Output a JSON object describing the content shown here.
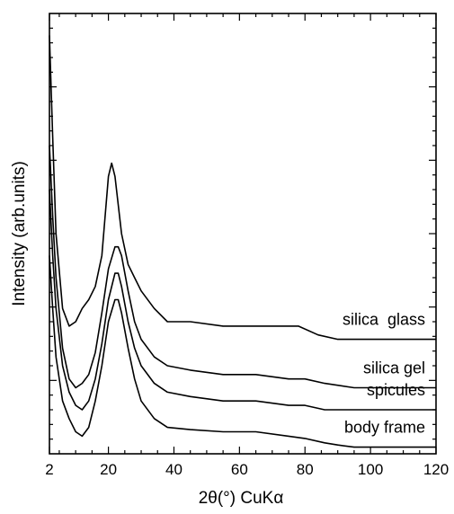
{
  "chart_data": {
    "type": "line",
    "xlabel": "2θ(°) CuKα",
    "ylabel": "Intensity (arb.units)",
    "xlim": [
      2,
      120
    ],
    "ylim": [
      0,
      1
    ],
    "x_ticks": [
      "2",
      "20",
      "40",
      "60",
      "80",
      "100",
      "120"
    ],
    "grid": false,
    "series_labels_placement": "right, above each curve",
    "series": [
      {
        "name": "silica  glass",
        "x": [
          2,
          3,
          4,
          6,
          8,
          10,
          12,
          14,
          16,
          18,
          20,
          21,
          22,
          24,
          26,
          28,
          30,
          34,
          38,
          45,
          55,
          65,
          72,
          78,
          84,
          90,
          100,
          110,
          120
        ],
        "y": [
          0.95,
          0.72,
          0.5,
          0.33,
          0.29,
          0.3,
          0.33,
          0.35,
          0.38,
          0.45,
          0.63,
          0.66,
          0.63,
          0.5,
          0.43,
          0.4,
          0.37,
          0.33,
          0.3,
          0.3,
          0.29,
          0.29,
          0.29,
          0.29,
          0.27,
          0.26,
          0.26,
          0.26,
          0.26
        ]
      },
      {
        "name": "silica gel",
        "x": [
          2,
          3,
          4,
          6,
          8,
          10,
          12,
          14,
          16,
          18,
          20,
          22,
          23,
          24,
          26,
          28,
          30,
          34,
          38,
          45,
          55,
          65,
          75,
          80,
          86,
          95,
          105,
          120
        ],
        "y": [
          0.7,
          0.54,
          0.4,
          0.24,
          0.17,
          0.15,
          0.16,
          0.18,
          0.23,
          0.32,
          0.42,
          0.47,
          0.47,
          0.45,
          0.37,
          0.3,
          0.26,
          0.22,
          0.2,
          0.19,
          0.18,
          0.18,
          0.17,
          0.17,
          0.16,
          0.15,
          0.15,
          0.15
        ]
      },
      {
        "name": "spicules",
        "x": [
          2,
          3,
          4,
          6,
          8,
          10,
          12,
          14,
          16,
          18,
          20,
          22,
          23,
          24,
          26,
          28,
          30,
          34,
          38,
          45,
          55,
          65,
          75,
          80,
          86,
          95,
          105,
          120
        ],
        "y": [
          0.6,
          0.45,
          0.33,
          0.2,
          0.14,
          0.11,
          0.1,
          0.12,
          0.17,
          0.25,
          0.35,
          0.41,
          0.41,
          0.38,
          0.3,
          0.24,
          0.2,
          0.16,
          0.14,
          0.13,
          0.12,
          0.12,
          0.11,
          0.11,
          0.1,
          0.1,
          0.1,
          0.1
        ]
      },
      {
        "name": "body frame",
        "x": [
          2,
          3,
          4,
          6,
          8,
          10,
          12,
          14,
          16,
          18,
          20,
          22,
          23,
          24,
          26,
          28,
          30,
          34,
          38,
          45,
          55,
          65,
          75,
          80,
          86,
          90,
          95,
          105,
          120
        ],
        "y": [
          0.45,
          0.33,
          0.22,
          0.12,
          0.08,
          0.05,
          0.04,
          0.06,
          0.12,
          0.2,
          0.3,
          0.35,
          0.35,
          0.32,
          0.24,
          0.17,
          0.12,
          0.08,
          0.06,
          0.055,
          0.05,
          0.05,
          0.04,
          0.035,
          0.025,
          0.02,
          0.015,
          0.015,
          0.015
        ]
      }
    ]
  }
}
